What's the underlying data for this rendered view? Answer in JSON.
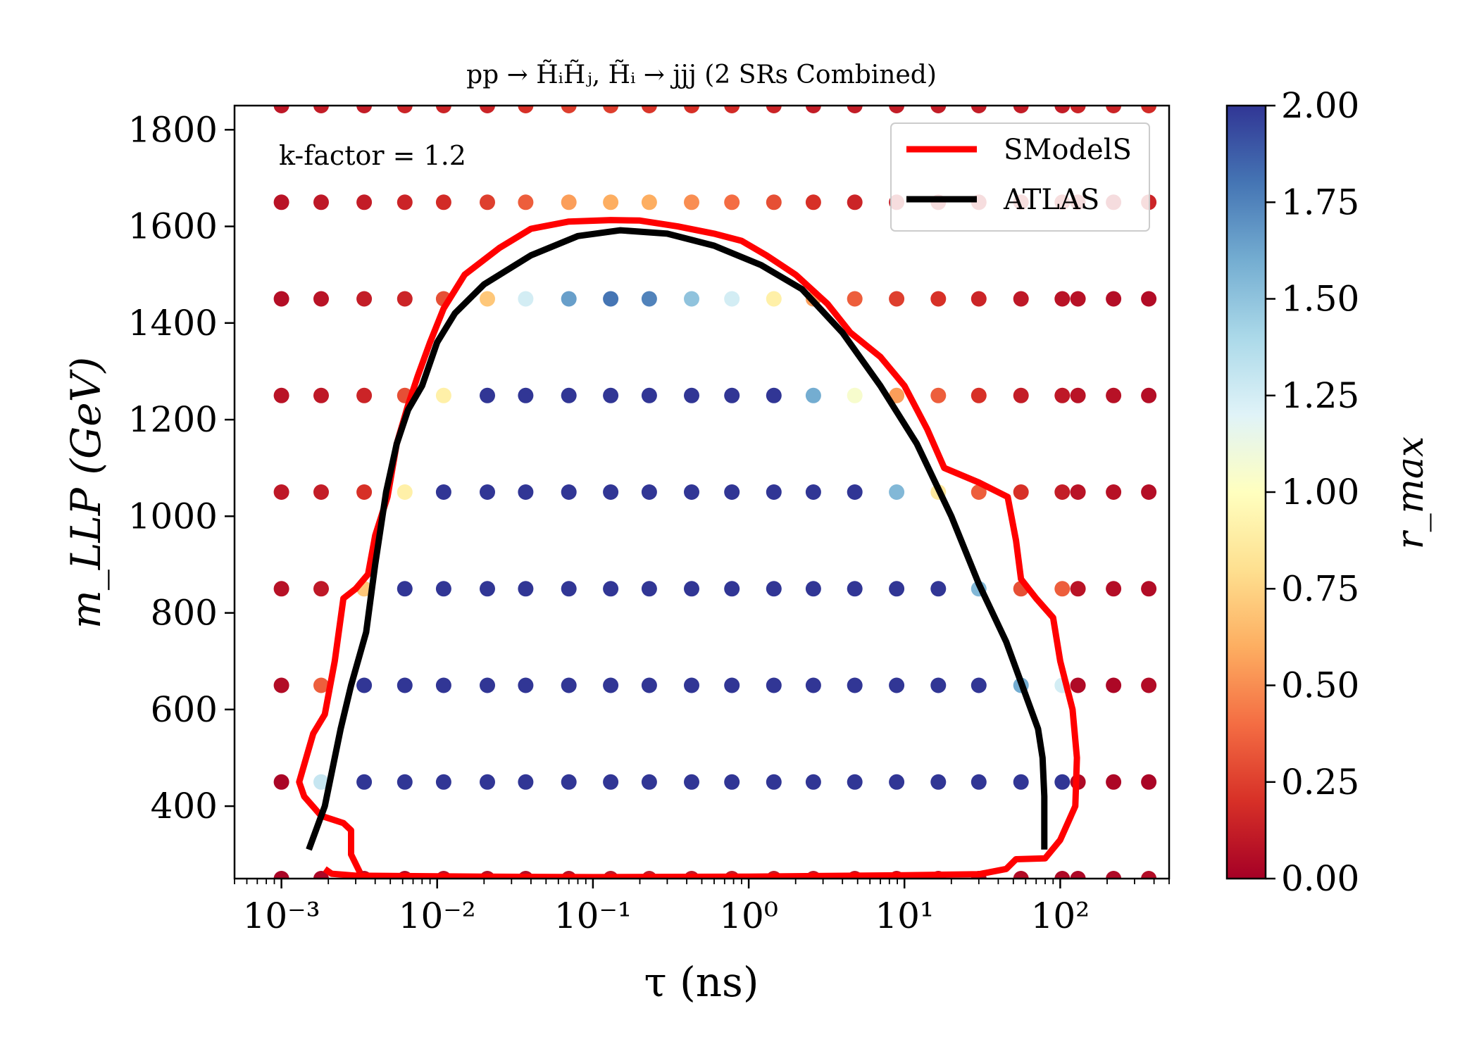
{
  "chart_data": {
    "type": "scatter",
    "title": "pp → H̃ᵢH̃ⱼ, H̃ᵢ → jjj (2 SRs Combined)",
    "annotation": "k-factor = 1.2",
    "xlabel": "τ (ns)",
    "ylabel": "m_LLP (GeV)",
    "x_scale": "log",
    "xlim": [
      0.0005,
      500
    ],
    "ylim": [
      250,
      1850
    ],
    "grid": false,
    "legend_position": "top-right",
    "x_ticks": [
      {
        "value": 0.001,
        "label": "10⁻³"
      },
      {
        "value": 0.01,
        "label": "10⁻²"
      },
      {
        "value": 0.1,
        "label": "10⁻¹"
      },
      {
        "value": 1,
        "label": "10⁰"
      },
      {
        "value": 10,
        "label": "10¹"
      },
      {
        "value": 100,
        "label": "10²"
      }
    ],
    "y_ticks": [
      {
        "value": 400,
        "label": "400"
      },
      {
        "value": 600,
        "label": "600"
      },
      {
        "value": 800,
        "label": "800"
      },
      {
        "value": 1000,
        "label": "1000"
      },
      {
        "value": 1200,
        "label": "1200"
      },
      {
        "value": 1400,
        "label": "1400"
      },
      {
        "value": 1600,
        "label": "1600"
      },
      {
        "value": 1800,
        "label": "1800"
      }
    ],
    "colorbar": {
      "label": "r_max",
      "range": [
        0,
        2
      ],
      "colormap": "RdYlBu",
      "stops": [
        "#a50026",
        "#d73027",
        "#f46d43",
        "#fdae61",
        "#fee090",
        "#ffffbf",
        "#e0f3f8",
        "#abd9e9",
        "#74add1",
        "#4575b4",
        "#313695"
      ],
      "ticks": [
        {
          "value": 0,
          "label": "0.00"
        },
        {
          "value": 0.25,
          "label": "0.25"
        },
        {
          "value": 0.5,
          "label": "0.50"
        },
        {
          "value": 0.75,
          "label": "0.75"
        },
        {
          "value": 1.0,
          "label": "1.00"
        },
        {
          "value": 1.25,
          "label": "1.25"
        },
        {
          "value": 1.5,
          "label": "1.50"
        },
        {
          "value": 1.75,
          "label": "1.75"
        },
        {
          "value": 2.0,
          "label": "2.00"
        }
      ]
    },
    "grid_points": {
      "tau_values": [
        0.001,
        0.0018,
        0.0034,
        0.0062,
        0.011,
        0.021,
        0.037,
        0.07,
        0.13,
        0.23,
        0.43,
        0.78,
        1.45,
        2.6,
        4.8,
        8.9,
        16.5,
        30,
        56,
        103,
        130,
        220,
        370
      ],
      "masses": [
        250,
        450,
        650,
        850,
        1050,
        1250,
        1450,
        1650,
        1850
      ],
      "r_max": [
        [
          0.02,
          0.03,
          0.06,
          0.05,
          0.08,
          0.07,
          0.06,
          0.08,
          0.1,
          0.12,
          0.11,
          0.12,
          0.12,
          0.11,
          0.1,
          0.08,
          0.07,
          0.06,
          0.05,
          0.04,
          0.03,
          0.04,
          0.05
        ],
        [
          0.02,
          1.3,
          2.0,
          2.0,
          2.0,
          2.0,
          2.0,
          2.0,
          2.0,
          2.0,
          2.0,
          2.0,
          2.0,
          2.0,
          2.0,
          2.0,
          2.0,
          2.0,
          2.0,
          2.0,
          0.04,
          0.03,
          0.02
        ],
        [
          0.05,
          0.35,
          2.0,
          2.0,
          2.0,
          2.0,
          2.0,
          2.0,
          2.0,
          2.0,
          2.0,
          2.0,
          2.0,
          2.0,
          2.0,
          2.0,
          2.0,
          2.0,
          1.6,
          1.25,
          0.04,
          0.03,
          0.05
        ],
        [
          0.07,
          0.1,
          0.7,
          2.0,
          2.0,
          2.0,
          2.0,
          2.0,
          2.0,
          2.0,
          2.0,
          2.0,
          2.0,
          2.0,
          2.0,
          2.0,
          2.0,
          1.55,
          0.3,
          0.35,
          0.08,
          0.06,
          0.05
        ],
        [
          0.1,
          0.12,
          0.2,
          0.9,
          2.0,
          2.0,
          2.0,
          2.0,
          2.0,
          2.0,
          2.0,
          2.0,
          2.0,
          2.0,
          2.0,
          1.55,
          0.85,
          0.35,
          0.2,
          0.12,
          0.08,
          0.07,
          0.06
        ],
        [
          0.08,
          0.1,
          0.15,
          0.3,
          0.9,
          2.0,
          2.0,
          2.0,
          2.0,
          2.0,
          2.0,
          2.0,
          2.0,
          1.6,
          1.05,
          0.55,
          0.35,
          0.2,
          0.12,
          0.1,
          0.08,
          0.07,
          0.06
        ],
        [
          0.06,
          0.08,
          0.12,
          0.15,
          0.3,
          0.7,
          1.25,
          1.65,
          1.8,
          1.75,
          1.5,
          1.25,
          0.9,
          0.55,
          0.35,
          0.25,
          0.2,
          0.15,
          0.1,
          0.08,
          0.07,
          0.06,
          0.05
        ],
        [
          0.08,
          0.1,
          0.12,
          0.15,
          0.18,
          0.25,
          0.35,
          0.55,
          0.6,
          0.6,
          0.5,
          0.4,
          0.3,
          0.2,
          0.15,
          0.12,
          0.12,
          0.12,
          0.15,
          0.15,
          0.12,
          0.1,
          0.15
        ],
        [
          0.1,
          0.12,
          0.12,
          0.15,
          0.15,
          0.15,
          0.2,
          0.25,
          0.25,
          0.22,
          0.2,
          0.18,
          0.15,
          0.12,
          0.12,
          0.12,
          0.12,
          0.12,
          0.12,
          0.12,
          0.15,
          0.15,
          0.18
        ]
      ]
    },
    "series": [
      {
        "name": "SModelS",
        "color": "#ff0000",
        "points": [
          [
            0.0019,
            270
          ],
          [
            0.0021,
            260
          ],
          [
            0.003,
            256
          ],
          [
            0.02,
            254
          ],
          [
            0.1,
            253
          ],
          [
            1,
            254
          ],
          [
            10,
            257
          ],
          [
            30,
            259
          ],
          [
            45,
            270
          ],
          [
            52,
            290
          ],
          [
            80,
            292
          ],
          [
            100,
            330
          ],
          [
            125,
            400
          ],
          [
            128,
            500
          ],
          [
            120,
            600
          ],
          [
            100,
            700
          ],
          [
            90,
            790
          ],
          [
            70,
            830
          ],
          [
            56,
            870
          ],
          [
            52,
            950
          ],
          [
            46,
            1040
          ],
          [
            30,
            1070
          ],
          [
            18,
            1100
          ],
          [
            14,
            1180
          ],
          [
            10,
            1270
          ],
          [
            7,
            1330
          ],
          [
            4.5,
            1380
          ],
          [
            3.2,
            1440
          ],
          [
            2.0,
            1500
          ],
          [
            1.3,
            1540
          ],
          [
            0.9,
            1570
          ],
          [
            0.6,
            1585
          ],
          [
            0.35,
            1600
          ],
          [
            0.2,
            1612
          ],
          [
            0.13,
            1613
          ],
          [
            0.07,
            1610
          ],
          [
            0.04,
            1595
          ],
          [
            0.025,
            1555
          ],
          [
            0.015,
            1500
          ],
          [
            0.011,
            1430
          ],
          [
            0.009,
            1360
          ],
          [
            0.0075,
            1290
          ],
          [
            0.0065,
            1230
          ],
          [
            0.0055,
            1150
          ],
          [
            0.0048,
            1040
          ],
          [
            0.004,
            960
          ],
          [
            0.0036,
            880
          ],
          [
            0.003,
            850
          ],
          [
            0.0025,
            830
          ],
          [
            0.0022,
            700
          ],
          [
            0.0019,
            590
          ],
          [
            0.0016,
            550
          ],
          [
            0.0013,
            450
          ],
          [
            0.0014,
            420
          ],
          [
            0.0018,
            380
          ],
          [
            0.0025,
            365
          ],
          [
            0.0028,
            350
          ],
          [
            0.0028,
            300
          ],
          [
            0.0032,
            262
          ]
        ]
      },
      {
        "name": "ATLAS",
        "color": "#000000",
        "points": [
          [
            0.0015,
            310
          ],
          [
            0.0019,
            400
          ],
          [
            0.0024,
            560
          ],
          [
            0.0028,
            650
          ],
          [
            0.0035,
            760
          ],
          [
            0.004,
            900
          ],
          [
            0.0047,
            1050
          ],
          [
            0.0055,
            1150
          ],
          [
            0.0065,
            1220
          ],
          [
            0.008,
            1270
          ],
          [
            0.01,
            1360
          ],
          [
            0.013,
            1420
          ],
          [
            0.02,
            1480
          ],
          [
            0.04,
            1540
          ],
          [
            0.08,
            1580
          ],
          [
            0.15,
            1592
          ],
          [
            0.3,
            1585
          ],
          [
            0.6,
            1560
          ],
          [
            1.2,
            1520
          ],
          [
            2.2,
            1470
          ],
          [
            4,
            1380
          ],
          [
            7,
            1270
          ],
          [
            12,
            1150
          ],
          [
            20,
            1000
          ],
          [
            30,
            860
          ],
          [
            45,
            740
          ],
          [
            60,
            630
          ],
          [
            72,
            560
          ],
          [
            77,
            500
          ],
          [
            79,
            420
          ],
          [
            79,
            310
          ]
        ]
      }
    ]
  }
}
